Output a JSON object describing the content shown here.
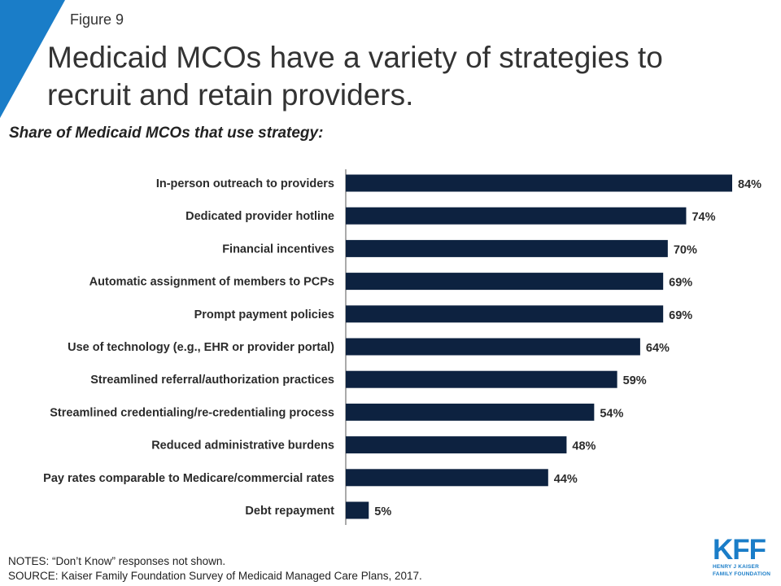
{
  "figure_label": "Figure 9",
  "title": "Medicaid MCOs have a variety of strategies to recruit and retain providers.",
  "subtitle": "Share of Medicaid MCOs that use strategy:",
  "notes": "NOTES: “Don’t Know” responses not shown.",
  "source": "SOURCE: Kaiser Family Foundation Survey of Medicaid Managed Care Plans, 2017.",
  "logo": {
    "main": "KFF",
    "sub_line1": "HENRY J KAISER",
    "sub_line2": "FAMILY FOUNDATION"
  },
  "colors": {
    "bar": "#0d2240",
    "accent": "#1a7dc8"
  },
  "chart_data": {
    "type": "bar",
    "orientation": "horizontal",
    "categories": [
      "In-person outreach to providers",
      "Dedicated provider hotline",
      "Financial incentives",
      "Automatic assignment of members to PCPs",
      "Prompt payment policies",
      "Use of technology (e.g., EHR or provider portal)",
      "Streamlined referral/authorization practices",
      "Streamlined credentialing/re-credentialing process",
      "Reduced administrative burdens",
      "Pay rates comparable to Medicare/commercial rates",
      "Debt repayment"
    ],
    "values": [
      84,
      74,
      70,
      69,
      69,
      64,
      59,
      54,
      48,
      44,
      5
    ],
    "value_labels": [
      "84%",
      "74%",
      "70%",
      "69%",
      "69%",
      "64%",
      "59%",
      "54%",
      "48%",
      "44%",
      "5%"
    ],
    "xlim": [
      0,
      84
    ],
    "grid": false
  }
}
